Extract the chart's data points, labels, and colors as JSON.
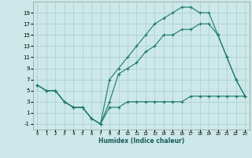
{
  "bg_color": "#cce8e8",
  "grid_color": "#aacccc",
  "line_color": "#1a7a6a",
  "xlim": [
    -0.5,
    23.5
  ],
  "ylim": [
    -2.0,
    21.0
  ],
  "xticks": [
    0,
    1,
    2,
    3,
    4,
    5,
    6,
    7,
    8,
    9,
    10,
    11,
    12,
    13,
    14,
    15,
    16,
    17,
    18,
    19,
    20,
    21,
    22,
    23
  ],
  "yticks": [
    -1,
    1,
    3,
    5,
    7,
    9,
    11,
    13,
    15,
    17,
    19
  ],
  "xlabel": "Humidex (Indice chaleur)",
  "line1_x": [
    0,
    1,
    2,
    3,
    4,
    5,
    6,
    7,
    8,
    9,
    10,
    11,
    12,
    13,
    14,
    15,
    16,
    17,
    18,
    19,
    20,
    21,
    22,
    23
  ],
  "line1_y": [
    6,
    5,
    5,
    3,
    2,
    2,
    0,
    -1,
    7,
    9,
    11,
    13,
    15,
    17,
    18,
    19,
    20,
    20,
    19,
    19,
    15,
    11,
    7,
    4
  ],
  "line2_x": [
    0,
    1,
    2,
    3,
    4,
    5,
    6,
    7,
    8,
    9,
    10,
    11,
    12,
    13,
    14,
    15,
    16,
    17,
    18,
    19,
    20,
    21,
    22,
    23
  ],
  "line2_y": [
    6,
    5,
    5,
    3,
    2,
    2,
    0,
    -1,
    3,
    8,
    9,
    10,
    12,
    13,
    15,
    15,
    16,
    16,
    17,
    17,
    15,
    11,
    7,
    4
  ],
  "line3_x": [
    0,
    1,
    2,
    3,
    4,
    5,
    6,
    7,
    8,
    9,
    10,
    11,
    12,
    13,
    14,
    15,
    16,
    17,
    18,
    19,
    20,
    21,
    22,
    23
  ],
  "line3_y": [
    6,
    5,
    5,
    3,
    2,
    2,
    0,
    -1,
    2,
    2,
    3,
    3,
    3,
    3,
    3,
    3,
    3,
    4,
    4,
    4,
    4,
    4,
    4,
    4
  ]
}
